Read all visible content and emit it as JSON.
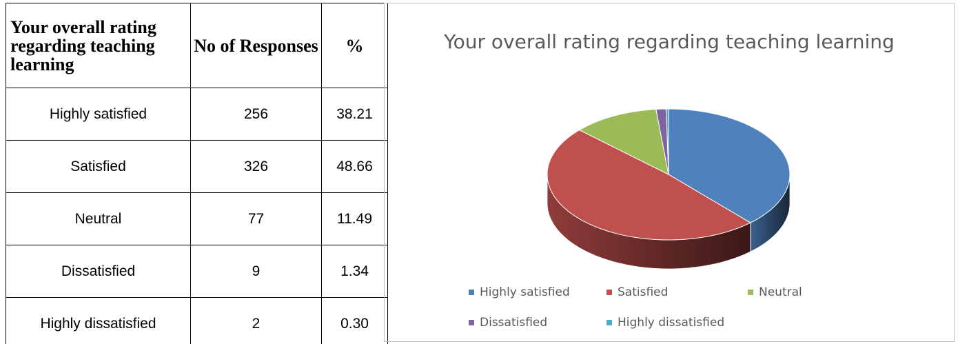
{
  "table": {
    "headers": [
      "Your overall rating regarding teaching learning",
      "No of Responses",
      "%"
    ],
    "rows": [
      [
        "Highly satisfied",
        256,
        "38.21"
      ],
      [
        "Satisfied",
        326,
        "48.66"
      ],
      [
        "Neutral",
        77,
        "11.49"
      ],
      [
        "Dissatisfied",
        9,
        "1.34"
      ],
      [
        "Highly dissatisfied",
        2,
        "0.30"
      ]
    ]
  },
  "chart_data": {
    "type": "pie",
    "title": "Your overall rating regarding teaching learning",
    "categories": [
      "Highly satisfied",
      "Satisfied",
      "Neutral",
      "Dissatisfied",
      "Highly dissatisfied"
    ],
    "values": [
      256,
      326,
      77,
      9,
      2
    ],
    "colors": [
      "#4f81bd",
      "#c0504d",
      "#9bbb59",
      "#8064a2",
      "#4bacc6"
    ],
    "legend": "bottom"
  }
}
